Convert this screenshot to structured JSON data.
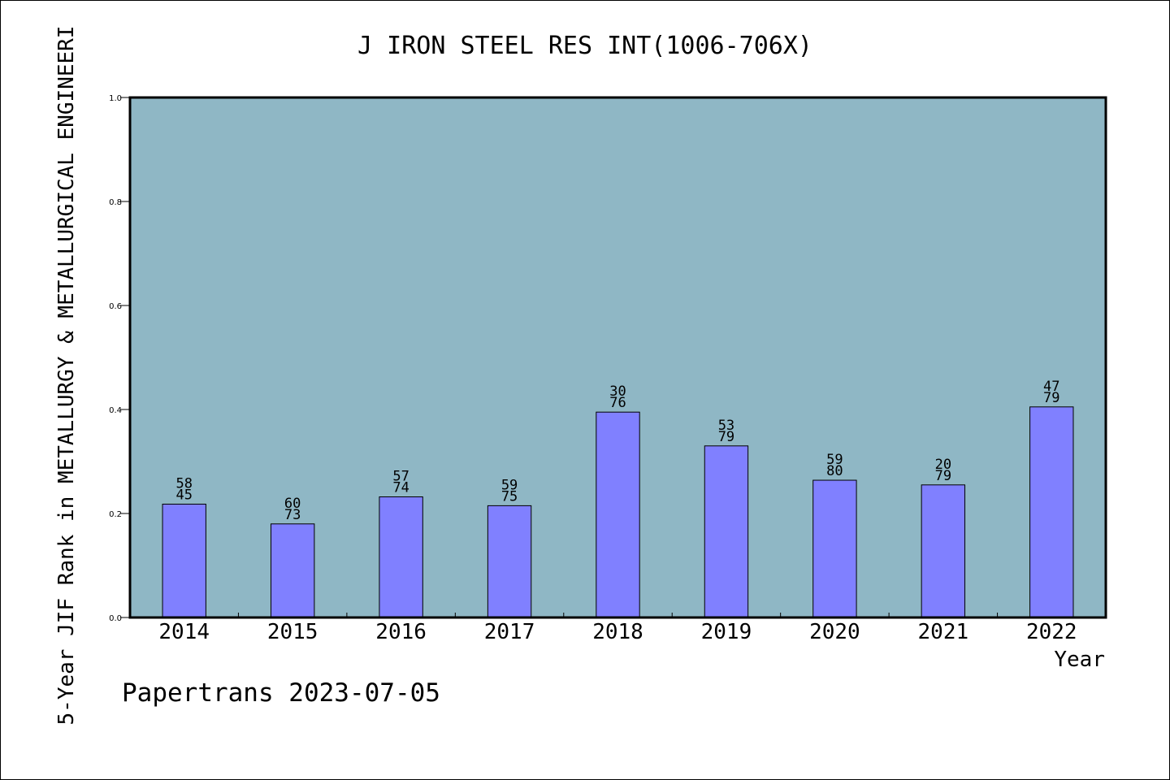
{
  "chart_data": {
    "type": "bar",
    "title": "J IRON STEEL RES INT(1006-706X)",
    "xlabel": "Year",
    "ylabel": "5-Year JIF Rank in METALLURGY & METALLURGICAL ENGINEERI",
    "categories": [
      "2014",
      "2015",
      "2016",
      "2017",
      "2018",
      "2019",
      "2020",
      "2021",
      "2022"
    ],
    "values": [
      0.218,
      0.18,
      0.232,
      0.215,
      0.395,
      0.33,
      0.264,
      0.255,
      0.405
    ],
    "rank_labels": [
      {
        "rank": "58",
        "total": "45"
      },
      {
        "rank": "60",
        "total": "73"
      },
      {
        "rank": "57",
        "total": "74"
      },
      {
        "rank": "59",
        "total": "75"
      },
      {
        "rank": "30",
        "total": "76"
      },
      {
        "rank": "53",
        "total": "79"
      },
      {
        "rank": "59",
        "total": "80"
      },
      {
        "rank": "20",
        "total": "79"
      },
      {
        "rank": "47",
        "total": "79"
      }
    ],
    "ylim": [
      0,
      1.0
    ],
    "yticks": [
      "0.0",
      "0.2",
      "0.4",
      "0.6",
      "0.8",
      "1.0"
    ],
    "grid": false,
    "legend": "none",
    "colors": {
      "plot_background": "#8fb7c5",
      "bar_fill": "#8080ff",
      "bar_stroke": "#000000"
    }
  },
  "footer": {
    "credit": "Papertrans 2023-07-05"
  }
}
